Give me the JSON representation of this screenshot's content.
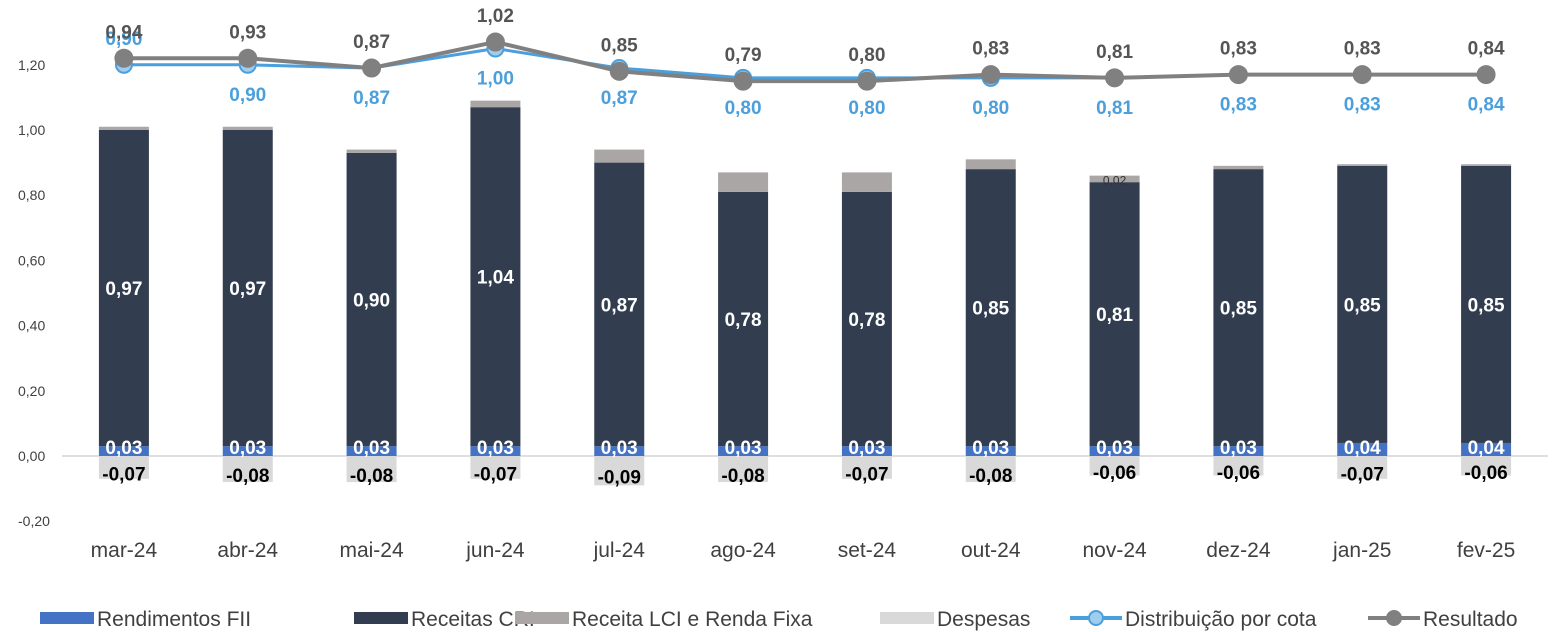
{
  "chart_data": {
    "type": "bar",
    "categories": [
      "mar-24",
      "abr-24",
      "mai-24",
      "jun-24",
      "jul-24",
      "ago-24",
      "set-24",
      "out-24",
      "nov-24",
      "dez-24",
      "jan-25",
      "fev-25"
    ],
    "ylim": [
      -0.2,
      1.3
    ],
    "yticks": [
      "-0,20",
      "0,00",
      "0,20",
      "0,40",
      "0,60",
      "0,80",
      "1,00",
      "1,20"
    ],
    "ytick_values": [
      -0.2,
      0,
      0.2,
      0.4,
      0.6,
      0.8,
      1.0,
      1.2
    ],
    "grid": false,
    "legend_position": "bottom",
    "series": [
      {
        "name": "Rendimentos FII",
        "kind": "bar",
        "color": "#4472c4",
        "values": [
          0.03,
          0.03,
          0.03,
          0.03,
          0.03,
          0.03,
          0.03,
          0.03,
          0.03,
          0.03,
          0.04,
          0.04
        ],
        "labels": [
          "0,03",
          "0,03",
          "0,03",
          "0,03",
          "0,03",
          "0,03",
          "0,03",
          "0,03",
          "0,03",
          "0,03",
          "0,04",
          "0,04"
        ]
      },
      {
        "name": "Receitas CRI",
        "kind": "bar",
        "color": "#323e50",
        "values": [
          0.97,
          0.97,
          0.9,
          1.04,
          0.87,
          0.78,
          0.78,
          0.85,
          0.81,
          0.85,
          0.85,
          0.85
        ],
        "labels": [
          "0,97",
          "0,97",
          "0,90",
          "1,04",
          "0,87",
          "0,78",
          "0,78",
          "0,85",
          "0,81",
          "0,85",
          "0,85",
          "0,85"
        ]
      },
      {
        "name": "Receita LCI e Renda Fixa",
        "kind": "bar",
        "color": "#aaa6a6",
        "values": [
          0.01,
          0.01,
          0.01,
          0.02,
          0.04,
          0.06,
          0.06,
          0.03,
          0.02,
          0.01,
          0.005,
          0.005
        ],
        "labels": [
          "",
          "",
          "",
          "",
          "",
          "",
          "",
          "",
          "0,02",
          "",
          "",
          ""
        ]
      },
      {
        "name": "Despesas",
        "kind": "bar",
        "color": "#d9d9d9",
        "values": [
          -0.07,
          -0.08,
          -0.08,
          -0.07,
          -0.09,
          -0.08,
          -0.07,
          -0.08,
          -0.06,
          -0.06,
          -0.07,
          -0.06
        ],
        "labels": [
          "-0,07",
          "-0,08",
          "-0,08",
          "-0,07",
          "-0,09",
          "-0,08",
          "-0,07",
          "-0,08",
          "-0,06",
          "-0,06",
          "-0,07",
          "-0,06"
        ]
      },
      {
        "name": "Distribuição por cota",
        "kind": "line",
        "color": "#4a9fdc",
        "values": [
          1.2,
          1.2,
          1.19,
          1.25,
          1.19,
          1.16,
          1.16,
          1.16,
          1.16,
          1.17,
          1.17,
          1.17
        ],
        "labels": [
          "0,90",
          "0,90",
          "0,87",
          "1,00",
          "0,87",
          "0,80",
          "0,80",
          "0,80",
          "0,81",
          "0,83",
          "0,83",
          "0,84"
        ]
      },
      {
        "name": "Resultado",
        "kind": "line",
        "color": "#808080",
        "values": [
          1.22,
          1.22,
          1.19,
          1.27,
          1.18,
          1.15,
          1.15,
          1.17,
          1.16,
          1.17,
          1.17,
          1.17
        ],
        "labels": [
          "0,94",
          "0,93",
          "0,87",
          "1,02",
          "0,85",
          "0,79",
          "0,80",
          "0,83",
          "0,81",
          "0,83",
          "0,83",
          "0,84"
        ]
      }
    ]
  }
}
